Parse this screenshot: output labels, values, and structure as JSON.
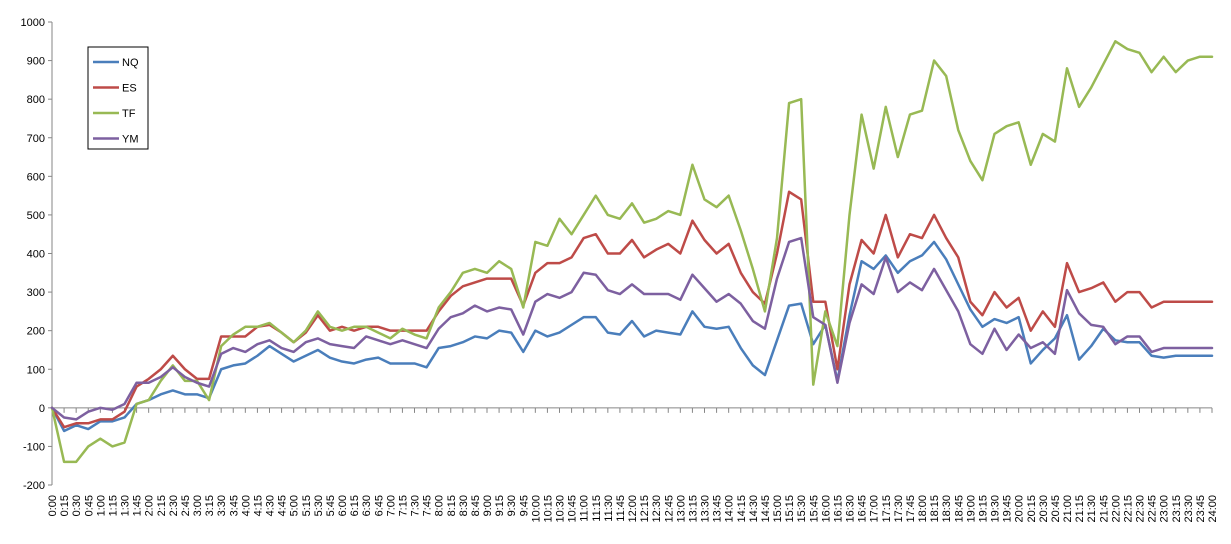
{
  "chart_data": {
    "type": "line",
    "title": "",
    "xlabel": "",
    "ylabel": "",
    "ylim": [
      -200,
      1000
    ],
    "yticks": [
      -200,
      -100,
      0,
      100,
      200,
      300,
      400,
      500,
      600,
      700,
      800,
      900,
      1000
    ],
    "grid": false,
    "legend_position": "top-left",
    "x": [
      "0:00",
      "0:15",
      "0:30",
      "0:45",
      "1:00",
      "1:15",
      "1:30",
      "1:45",
      "2:00",
      "2:15",
      "2:30",
      "2:45",
      "3:00",
      "3:15",
      "3:30",
      "3:45",
      "4:00",
      "4:15",
      "4:30",
      "4:45",
      "5:00",
      "5:15",
      "5:30",
      "5:45",
      "6:00",
      "6:15",
      "6:30",
      "6:45",
      "7:00",
      "7:15",
      "7:30",
      "7:45",
      "8:00",
      "8:15",
      "8:30",
      "8:45",
      "9:00",
      "9:15",
      "9:30",
      "9:45",
      "10:00",
      "10:15",
      "10:30",
      "10:45",
      "11:00",
      "11:15",
      "11:30",
      "11:45",
      "12:00",
      "12:15",
      "12:30",
      "12:45",
      "13:00",
      "13:15",
      "13:30",
      "13:45",
      "14:00",
      "14:15",
      "14:30",
      "14:45",
      "15:00",
      "15:15",
      "15:30",
      "15:45",
      "16:00",
      "16:15",
      "16:30",
      "16:45",
      "17:00",
      "17:15",
      "17:30",
      "17:45",
      "18:00",
      "18:15",
      "18:30",
      "18:45",
      "19:00",
      "19:15",
      "19:30",
      "19:45",
      "20:00",
      "20:15",
      "20:30",
      "20:45",
      "21:00",
      "21:15",
      "21:30",
      "21:45",
      "22:00",
      "22:15",
      "22:30",
      "22:45",
      "23:00",
      "23:15",
      "23:30",
      "23:45",
      "24:00"
    ],
    "series": [
      {
        "name": "NQ",
        "color": "#4a7ebb",
        "values": [
          0,
          -60,
          -45,
          -55,
          -35,
          -35,
          -25,
          10,
          20,
          35,
          45,
          35,
          35,
          25,
          100,
          110,
          115,
          135,
          160,
          140,
          120,
          135,
          150,
          130,
          120,
          115,
          125,
          130,
          115,
          115,
          115,
          105,
          155,
          160,
          170,
          185,
          180,
          200,
          195,
          145,
          200,
          185,
          195,
          215,
          235,
          235,
          195,
          190,
          225,
          185,
          200,
          195,
          190,
          250,
          210,
          205,
          210,
          155,
          110,
          85,
          175,
          265,
          270,
          165,
          215,
          70,
          240,
          380,
          360,
          395,
          350,
          380,
          395,
          430,
          385,
          320,
          255,
          210,
          230,
          220,
          235,
          115,
          150,
          180,
          240,
          125,
          160,
          205,
          175,
          170,
          170,
          135,
          130,
          135,
          135,
          135,
          135
        ]
      },
      {
        "name": "ES",
        "color": "#be4b48",
        "values": [
          0,
          -50,
          -40,
          -40,
          -30,
          -30,
          -10,
          55,
          75,
          100,
          135,
          100,
          75,
          75,
          185,
          185,
          185,
          210,
          215,
          195,
          170,
          195,
          240,
          200,
          210,
          200,
          210,
          210,
          200,
          200,
          200,
          200,
          250,
          290,
          315,
          325,
          335,
          335,
          335,
          265,
          350,
          375,
          375,
          390,
          440,
          450,
          400,
          400,
          435,
          390,
          410,
          425,
          400,
          485,
          435,
          400,
          425,
          350,
          300,
          270,
          400,
          560,
          540,
          275,
          275,
          100,
          320,
          435,
          400,
          500,
          390,
          450,
          440,
          500,
          440,
          390,
          275,
          240,
          300,
          260,
          285,
          200,
          250,
          210,
          375,
          300,
          310,
          325,
          275,
          300,
          300,
          260,
          275,
          275,
          275,
          275,
          275
        ]
      },
      {
        "name": "TF",
        "color": "#98b954",
        "values": [
          0,
          -140,
          -140,
          -100,
          -80,
          -100,
          -90,
          10,
          20,
          70,
          110,
          70,
          70,
          20,
          160,
          190,
          210,
          210,
          220,
          195,
          170,
          200,
          250,
          210,
          200,
          210,
          210,
          195,
          180,
          205,
          190,
          180,
          260,
          300,
          350,
          360,
          350,
          380,
          360,
          260,
          430,
          420,
          490,
          450,
          500,
          550,
          500,
          490,
          530,
          480,
          490,
          510,
          500,
          630,
          540,
          520,
          550,
          460,
          360,
          250,
          440,
          790,
          800,
          60,
          250,
          160,
          500,
          760,
          620,
          780,
          650,
          760,
          770,
          900,
          860,
          720,
          640,
          590,
          710,
          730,
          740,
          630,
          710,
          690,
          880,
          780,
          830,
          890,
          950,
          930,
          920,
          870,
          910,
          870,
          900,
          910,
          910
        ]
      },
      {
        "name": "YM",
        "color": "#7d60a0",
        "values": [
          0,
          -25,
          -30,
          -10,
          0,
          -5,
          10,
          65,
          65,
          80,
          105,
          80,
          65,
          55,
          140,
          155,
          145,
          165,
          175,
          155,
          145,
          170,
          180,
          165,
          160,
          155,
          185,
          175,
          165,
          175,
          165,
          155,
          205,
          235,
          245,
          265,
          250,
          260,
          255,
          190,
          275,
          295,
          285,
          300,
          350,
          345,
          305,
          295,
          320,
          295,
          295,
          295,
          280,
          345,
          310,
          275,
          295,
          270,
          225,
          205,
          335,
          430,
          440,
          235,
          215,
          65,
          220,
          320,
          295,
          390,
          300,
          325,
          305,
          360,
          305,
          250,
          165,
          140,
          205,
          150,
          190,
          155,
          170,
          140,
          305,
          245,
          215,
          210,
          165,
          185,
          185,
          145,
          155,
          155,
          155,
          155,
          155
        ]
      }
    ]
  }
}
